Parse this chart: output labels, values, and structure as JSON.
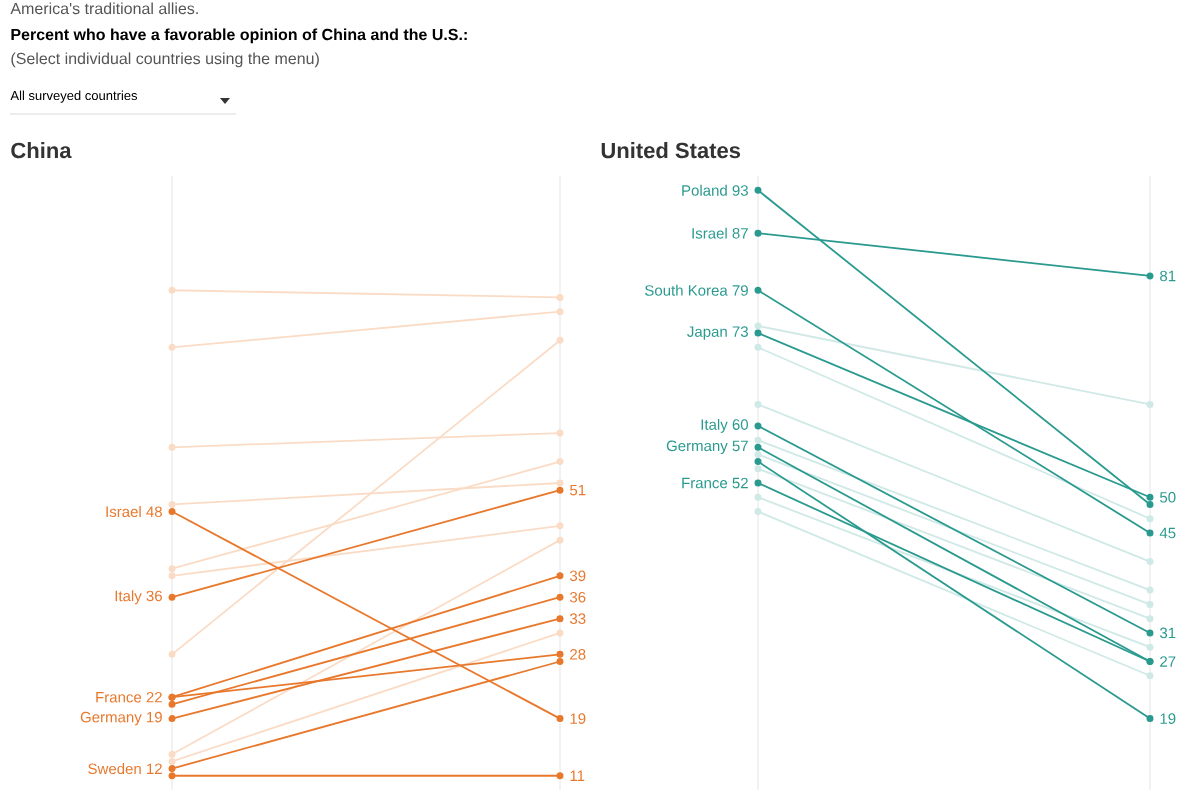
{
  "chart_data": [
    {
      "type": "line",
      "title": "China",
      "annotations": [
        "America's traditional allies.",
        "Percent who have a favorable opinion of China and the U.S.:",
        "(Select individual countries using the menu)",
        "All surveyed countries"
      ],
      "categories": [
        null,
        null
      ],
      "ylim": [
        9,
        95
      ],
      "marker": "circle",
      "series": [
        {
          "color": "#fadcc6",
          "values": [
            79,
            78
          ]
        },
        {
          "color": "#fadcc6",
          "values": [
            71,
            76
          ]
        },
        {
          "color": "#fadcc6",
          "values": [
            57,
            59
          ]
        },
        {
          "color": "#fadcc6",
          "values": [
            28,
            72
          ]
        },
        {
          "color": "#fadcc6",
          "values": [
            49,
            52
          ]
        },
        {
          "color": "#fadcc6",
          "values": [
            40,
            55
          ]
        },
        {
          "color": "#fadcc6",
          "values": [
            39,
            46
          ]
        },
        {
          "color": "#fadcc6",
          "values": [
            14,
            44
          ]
        },
        {
          "color": "#fadcc6",
          "values": [
            13,
            31
          ]
        },
        {
          "name": "Israel",
          "color": "#e8782c",
          "values": [
            48,
            19
          ],
          "value_labels": [
            "48",
            "19"
          ]
        },
        {
          "name": "Italy",
          "color": "#e8782c",
          "values": [
            36,
            51
          ],
          "value_labels": [
            "36",
            "51"
          ]
        },
        {
          "name": "France",
          "color": "#e8782c",
          "values": [
            22,
            39
          ],
          "value_labels": [
            "22",
            "39"
          ]
        },
        {
          "color": "#e8782c",
          "values": [
            22,
            28
          ],
          "value_labels": [
            null,
            "28"
          ]
        },
        {
          "color": "#e8782c",
          "values": [
            21,
            36
          ],
          "value_labels": [
            null,
            "36"
          ]
        },
        {
          "name": "Germany",
          "color": "#e8782c",
          "values": [
            19,
            33
          ],
          "value_labels": [
            "19",
            "33"
          ]
        },
        {
          "name": "Sweden",
          "color": "#e8782c",
          "values": [
            12,
            27
          ],
          "value_labels": [
            "12",
            null
          ]
        },
        {
          "color": "#e8782c",
          "values": [
            11,
            11
          ],
          "value_labels": [
            null,
            "11"
          ]
        }
      ]
    },
    {
      "type": "line",
      "title": "United States",
      "categories": [
        null,
        null
      ],
      "ylim": [
        9,
        95
      ],
      "marker": "circle",
      "series": [
        {
          "color": "#cfe9e6",
          "values": [
            74,
            63
          ]
        },
        {
          "color": "#cfe9e6",
          "values": [
            71,
            47
          ]
        },
        {
          "color": "#cfe9e6",
          "values": [
            63,
            41
          ]
        },
        {
          "color": "#cfe9e6",
          "values": [
            58,
            37
          ]
        },
        {
          "color": "#cfe9e6",
          "values": [
            56,
            35
          ]
        },
        {
          "color": "#cfe9e6",
          "values": [
            54,
            33
          ]
        },
        {
          "color": "#cfe9e6",
          "values": [
            50,
            29
          ]
        },
        {
          "color": "#cfe9e6",
          "values": [
            48,
            25
          ]
        },
        {
          "name": "Poland",
          "color": "#2a9a8f",
          "values": [
            93,
            49
          ],
          "value_labels": [
            "93",
            null
          ]
        },
        {
          "name": "Israel",
          "color": "#2a9a8f",
          "values": [
            87,
            81
          ],
          "value_labels": [
            "87",
            "81"
          ]
        },
        {
          "name": "South Korea",
          "color": "#2a9a8f",
          "values": [
            79,
            45
          ],
          "value_labels": [
            "79",
            "45"
          ]
        },
        {
          "name": "Japan",
          "color": "#2a9a8f",
          "values": [
            73,
            50
          ],
          "value_labels": [
            "73",
            "50"
          ]
        },
        {
          "name": "Italy",
          "color": "#2a9a8f",
          "values": [
            60,
            31
          ],
          "value_labels": [
            "60",
            "31"
          ]
        },
        {
          "name": "Germany",
          "color": "#2a9a8f",
          "values": [
            57,
            27
          ],
          "value_labels": [
            "57",
            "27"
          ]
        },
        {
          "color": "#2a9a8f",
          "values": [
            55,
            19
          ],
          "value_labels": [
            null,
            "19"
          ]
        },
        {
          "name": "France",
          "color": "#2a9a8f",
          "values": [
            52,
            27
          ],
          "value_labels": [
            "52",
            null
          ]
        }
      ]
    }
  ]
}
